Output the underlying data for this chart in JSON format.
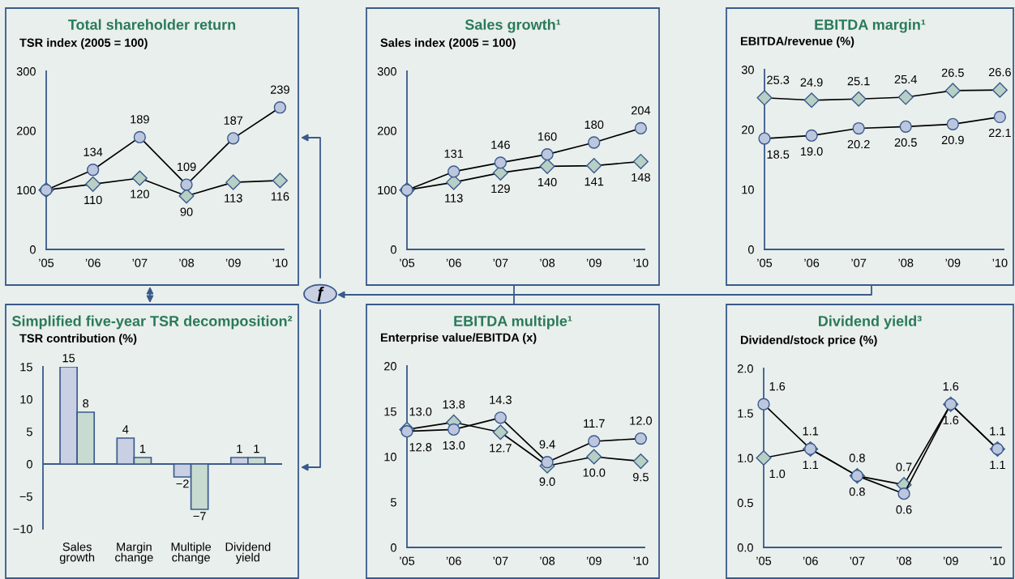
{
  "chart_data": [
    {
      "type": "line",
      "title": "Total shareholder return",
      "ylabel": "TSR index (2005 = 100)",
      "categories": [
        "’05",
        "’06",
        "’07",
        "’08",
        "’09",
        "’10"
      ],
      "ylim": [
        0,
        300
      ],
      "yticks": [
        0,
        100,
        200,
        300
      ],
      "grid": false,
      "series": [
        {
          "color": "#bcc6de",
          "marker": "circle",
          "values": [
            100,
            134,
            189,
            109,
            187,
            239
          ],
          "value_labels": [
            null,
            "134",
            "189",
            "109",
            "187",
            "239"
          ]
        },
        {
          "color": "#b7cfc4",
          "marker": "diamond",
          "values": [
            100,
            110,
            120,
            90,
            113,
            116
          ],
          "value_labels": [
            null,
            "110",
            "120",
            "90",
            "113",
            "116"
          ]
        }
      ]
    },
    {
      "type": "line",
      "title": "Sales growth¹",
      "ylabel": "Sales index (2005 = 100)",
      "categories": [
        "’05",
        "’06",
        "’07",
        "’08",
        "’09",
        "’10"
      ],
      "ylim": [
        0,
        300
      ],
      "yticks": [
        0,
        100,
        200,
        300
      ],
      "grid": false,
      "series": [
        {
          "color": "#bcc6de",
          "marker": "circle",
          "values": [
            100,
            131,
            146,
            160,
            180,
            204
          ],
          "value_labels": [
            null,
            "131",
            "146",
            "160",
            "180",
            "204"
          ]
        },
        {
          "color": "#b7cfc4",
          "marker": "diamond",
          "values": [
            100,
            113,
            129,
            140,
            141,
            148
          ],
          "value_labels": [
            null,
            "113",
            "129",
            "140",
            "141",
            "148"
          ]
        }
      ]
    },
    {
      "type": "line",
      "title": "EBITDA margin¹",
      "ylabel": "EBITDA/revenue (%)",
      "categories": [
        "’05",
        "’06",
        "’07",
        "’08",
        "’09",
        "’10"
      ],
      "ylim": [
        0,
        30
      ],
      "yticks": [
        0,
        10,
        20,
        30
      ],
      "grid": false,
      "series": [
        {
          "color": "#bcc6de",
          "marker": "circle",
          "values": [
            18.5,
            19.0,
            20.2,
            20.5,
            20.9,
            22.1
          ],
          "value_labels": [
            "18.5",
            "19.0",
            "20.2",
            "20.5",
            "20.9",
            "22.1"
          ]
        },
        {
          "color": "#b7cfc4",
          "marker": "diamond",
          "values": [
            25.3,
            24.9,
            25.1,
            25.4,
            26.5,
            26.6
          ],
          "value_labels": [
            "25.3",
            "24.9",
            "25.1",
            "25.4",
            "26.5",
            "26.6"
          ]
        }
      ]
    },
    {
      "type": "bar",
      "title": "Simplified five-year TSR decomposition²",
      "ylabel": "TSR contribution (%)",
      "categories": [
        "Sales growth",
        "Margin change",
        "Multiple change",
        "Dividend yield"
      ],
      "ylim": [
        -10,
        15
      ],
      "ref_lines": [
        {
          "axis": "y",
          "value": 0
        }
      ],
      "yticks": [
        {
          "value": -10,
          "label": "−10"
        },
        {
          "value": -5,
          "label": "−5"
        },
        0,
        5,
        10,
        15
      ],
      "grid": false,
      "series": [
        {
          "color": "#c9d0e3",
          "values": [
            15,
            4,
            -2,
            1
          ],
          "value_labels": [
            "15",
            "4",
            "−2",
            "1"
          ]
        },
        {
          "color": "#c8dbd1",
          "values": [
            8,
            1,
            -7,
            1
          ],
          "value_labels": [
            "8",
            "1",
            "−7",
            "1"
          ]
        }
      ]
    },
    {
      "type": "line",
      "title": "EBITDA multiple¹",
      "ylabel": "Enterprise value/EBITDA (x)",
      "categories": [
        "’05",
        "’06",
        "’07",
        "’08",
        "’09",
        "’10"
      ],
      "ylim": [
        0,
        20
      ],
      "yticks": [
        0,
        5,
        10,
        15,
        20
      ],
      "grid": false,
      "series": [
        {
          "color": "#bcc6de",
          "marker": "circle",
          "values": [
            12.8,
            13.0,
            14.3,
            9.4,
            11.7,
            12.0
          ],
          "value_labels": [
            "12.8",
            "13.0",
            "14.3",
            "9.4",
            "11.7",
            "12.0"
          ]
        },
        {
          "color": "#b7cfc4",
          "marker": "diamond",
          "values": [
            13.0,
            13.8,
            12.7,
            9.0,
            10.0,
            9.5
          ],
          "value_labels": [
            "13.0",
            "13.8",
            "12.7",
            "9.0",
            "10.0",
            "9.5"
          ]
        }
      ]
    },
    {
      "type": "line",
      "title": "Dividend yield³",
      "ylabel": "Dividend/stock price (%)",
      "categories": [
        "’05",
        "’06",
        "’07",
        "’08",
        "’09",
        "’10"
      ],
      "ylim": [
        0,
        2
      ],
      "yticks": [
        {
          "value": 0,
          "label": "0.0"
        },
        {
          "value": 0.5,
          "label": "0.5"
        },
        {
          "value": 1,
          "label": "1.0"
        },
        {
          "value": 1.5,
          "label": "1.5"
        },
        {
          "value": 2,
          "label": "2.0"
        }
      ],
      "grid": false,
      "series": [
        {
          "color": "#bcc6de",
          "marker": "circle",
          "values": [
            1.6,
            1.1,
            0.8,
            0.6,
            1.6,
            1.1
          ],
          "value_labels": [
            "1.6",
            "1.1",
            "0.8",
            "0.6",
            "1.6",
            "1.1"
          ]
        },
        {
          "color": "#b7cfc4",
          "marker": "diamond",
          "values": [
            1.0,
            1.1,
            0.8,
            0.7,
            1.6,
            1.1
          ],
          "value_labels": [
            "1.0",
            "1.1",
            "0.8",
            "0.7",
            "1.6",
            "1.1"
          ]
        }
      ]
    },
    {
      "type": "other",
      "annotations": [
        "ƒ"
      ]
    }
  ]
}
